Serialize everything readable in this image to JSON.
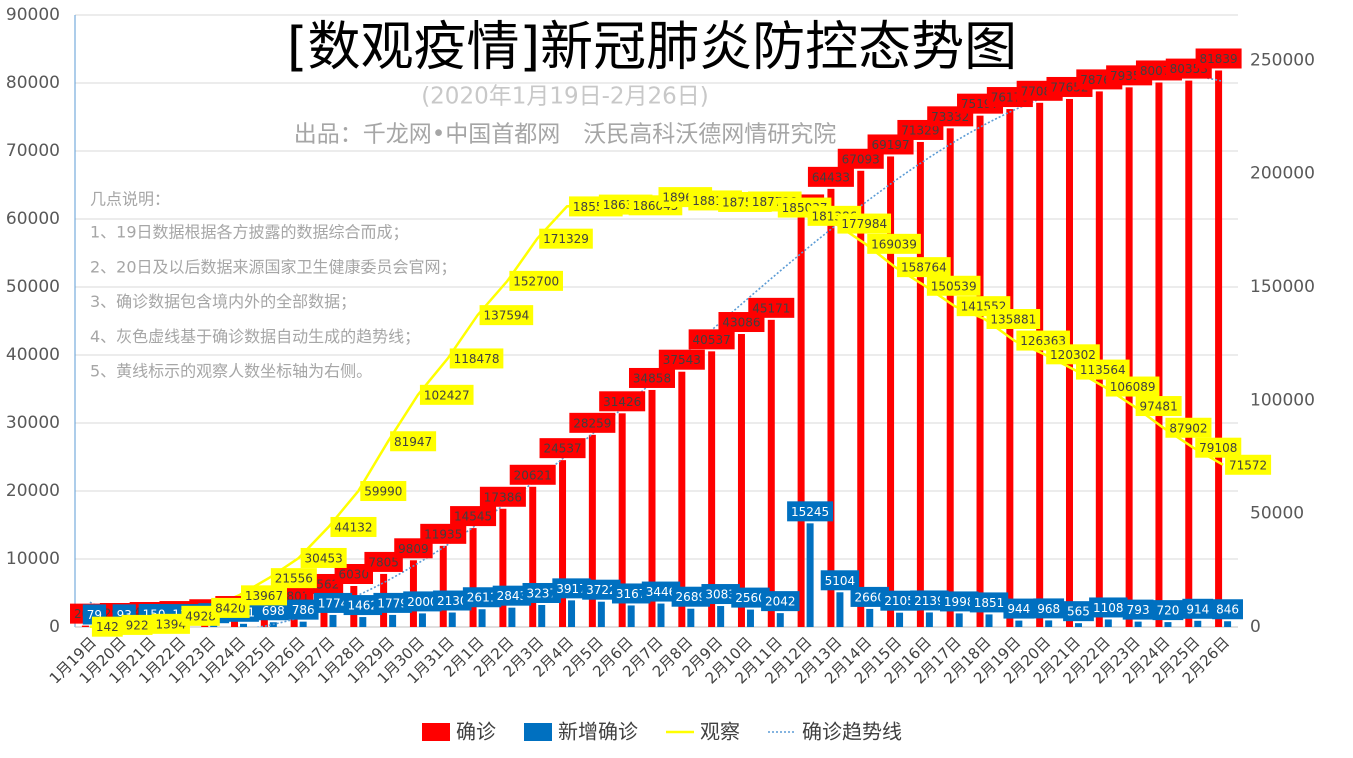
{
  "chart_data": {
    "type": "bar",
    "title": "[数观疫情]新冠肺炎防控态势图",
    "subtitle": "(2020年1月19日-2月26日)",
    "source": "出品：千龙网•中国首都网　沃民高科沃德网情研究院",
    "notes_title": "几点说明：",
    "notes": [
      "1、19日数据根据各方披露的数据综合而成；",
      "2、20日及以后数据来源国家卫生健康委员会官网；",
      "3、确诊数据包含境内外的全部数据；",
      "4、灰色虚线基于确诊数据自动生成的趋势线；",
      "5、黄线标示的观察人数坐标轴为右侧。"
    ],
    "categories": [
      "1月19日",
      "1月20日",
      "1月21日",
      "1月22日",
      "1月23日",
      "1月24日",
      "1月25日",
      "1月26日",
      "1月27日",
      "1月28日",
      "1月29日",
      "1月30日",
      "1月31日",
      "2月1日",
      "2月2日",
      "2月3日",
      "2月4日",
      "2月5日",
      "2月6日",
      "2月7日",
      "2月8日",
      "2月9日",
      "2月10日",
      "2月11日",
      "2月12日",
      "2月13日",
      "2月14日",
      "2月15日",
      "2月16日",
      "2月17日",
      "2月18日",
      "2月19日",
      "2月20日",
      "2月21日",
      "2月22日",
      "2月23日",
      "2月24日",
      "2月25日",
      "2月26日"
    ],
    "series": [
      {
        "name": "确诊",
        "color": "#ff0000",
        "values": [
          201,
          294,
          440,
          580,
          845,
          1317,
          2005,
          2801,
          4562,
          6030,
          7805,
          9809,
          11935,
          14545,
          17386,
          20621,
          24537,
          28259,
          31426,
          34858,
          37543,
          40537,
          43086,
          45171,
          60377,
          64433,
          67093,
          69197,
          71329,
          73332,
          75197,
          76170,
          77088,
          77652,
          78764,
          79359,
          80079,
          80353,
          81839
        ]
      },
      {
        "name": "新增确诊",
        "color": "#0070c0",
        "values": [
          79,
          93,
          150,
          135,
          264,
          471,
          698,
          786,
          1774,
          1462,
          1779,
          2000,
          2130,
          2611,
          2843,
          3237,
          3917,
          3722,
          3167,
          3446,
          2689,
          3083,
          2560,
          2042,
          15245,
          5104,
          2660,
          2105,
          2139,
          1998,
          1851,
          944,
          968,
          565,
          1108,
          793,
          720,
          914,
          846
        ]
      },
      {
        "name": "观察",
        "type": "line",
        "axis": "y2",
        "color": "#ffff00",
        "values": [
          142,
          922,
          1394,
          4928,
          8420,
          13967,
          21556,
          30453,
          44132,
          59990,
          81947,
          102427,
          118478,
          137594,
          152700,
          171329,
          185555,
          186354,
          186045,
          189660,
          188183,
          187518,
          187728,
          185037,
          181386,
          177984,
          169039,
          158764,
          150539,
          141552,
          135881,
          126363,
          120302,
          113564,
          106089,
          97481,
          87902,
          79108,
          71572
        ]
      }
    ],
    "trendline": {
      "name": "确诊趋势线",
      "color": "#5b9bd5"
    },
    "ylim": [
      0,
      90000
    ],
    "yticks": [
      0,
      10000,
      20000,
      30000,
      40000,
      50000,
      60000,
      70000,
      80000,
      90000
    ],
    "y2lim": [
      0,
      270000
    ],
    "y2ticks": [
      0,
      50000,
      100000,
      150000,
      200000,
      250000
    ],
    "grid": true,
    "legend": "bottom"
  }
}
